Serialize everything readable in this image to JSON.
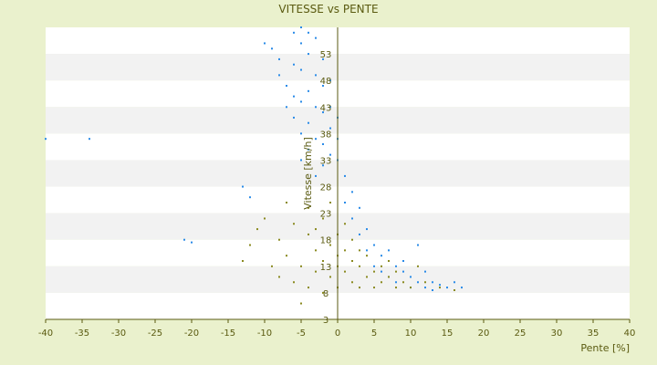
{
  "chart_data": {
    "type": "scatter",
    "title": "VITESSE vs PENTE",
    "xlabel": "Pente [%]",
    "ylabel": "Vitesse [km/h]",
    "xlim": [
      -40,
      40
    ],
    "ylim": [
      3,
      58
    ],
    "x_ticks": [
      -40,
      -35,
      -30,
      -25,
      -20,
      -15,
      -10,
      -5,
      0,
      5,
      10,
      15,
      20,
      25,
      30,
      35,
      40
    ],
    "x_tick_labels": [
      "-40",
      "-35",
      "-30",
      "-25",
      "-20",
      "-15",
      "-10",
      "-5",
      "0",
      "5",
      "10",
      "15",
      "20",
      "25",
      "30",
      "35",
      "40"
    ],
    "y_ticks": [
      58,
      53,
      48,
      43,
      38,
      33,
      28,
      23,
      18,
      13,
      8,
      3
    ],
    "y_tick_labels": [
      "",
      "53",
      "48",
      "43",
      "38",
      "33",
      "28",
      "23",
      "18",
      "13",
      "8",
      "3"
    ],
    "bottom_axis_label": "3",
    "grid": "horizontal bands",
    "legend": "none",
    "colors": {
      "background": "#eaf1cd",
      "plot_band_light": "#ffffff",
      "plot_band_dark": "#f2f2f2",
      "axis": "#5a5a10",
      "text": "#5a5a10",
      "series_1": "#2a8be8",
      "series_2": "#8a8a20"
    },
    "series": [
      {
        "color": "#2a8be8",
        "points": [
          [
            -40,
            37
          ],
          [
            -34,
            37
          ],
          [
            -21,
            18
          ],
          [
            -20,
            17.5
          ],
          [
            -13,
            28
          ],
          [
            -12,
            26
          ],
          [
            -10,
            55
          ],
          [
            -9,
            54
          ],
          [
            -8,
            52
          ],
          [
            -8,
            49
          ],
          [
            -7,
            47
          ],
          [
            -7,
            43
          ],
          [
            -6,
            57
          ],
          [
            -6,
            51
          ],
          [
            -6,
            45
          ],
          [
            -6,
            41
          ],
          [
            -5,
            58
          ],
          [
            -5,
            55
          ],
          [
            -5,
            50
          ],
          [
            -5,
            44
          ],
          [
            -5,
            38
          ],
          [
            -5,
            33
          ],
          [
            -4,
            57
          ],
          [
            -4,
            53
          ],
          [
            -4,
            46
          ],
          [
            -4,
            40
          ],
          [
            -4,
            35
          ],
          [
            -3,
            56
          ],
          [
            -3,
            49
          ],
          [
            -3,
            43
          ],
          [
            -3,
            37
          ],
          [
            -3,
            30
          ],
          [
            -2,
            52
          ],
          [
            -2,
            47
          ],
          [
            -2,
            42
          ],
          [
            -2,
            36
          ],
          [
            -2,
            32
          ],
          [
            -1,
            48
          ],
          [
            -1,
            43
          ],
          [
            -1,
            39
          ],
          [
            -1,
            34
          ],
          [
            0,
            41
          ],
          [
            0,
            37
          ],
          [
            0,
            33
          ],
          [
            1,
            30
          ],
          [
            1,
            25
          ],
          [
            2,
            27
          ],
          [
            2,
            22
          ],
          [
            3,
            24
          ],
          [
            3,
            19
          ],
          [
            4,
            20
          ],
          [
            4,
            16
          ],
          [
            5,
            17
          ],
          [
            5,
            13
          ],
          [
            6,
            15
          ],
          [
            6,
            12
          ],
          [
            7,
            16
          ],
          [
            7,
            11
          ],
          [
            8,
            13
          ],
          [
            8,
            10
          ],
          [
            9,
            14
          ],
          [
            9,
            12
          ],
          [
            10,
            11
          ],
          [
            10,
            9
          ],
          [
            11,
            17
          ],
          [
            11,
            10
          ],
          [
            12,
            12
          ],
          [
            12,
            9
          ],
          [
            13,
            10
          ],
          [
            13,
            8.5
          ],
          [
            14,
            9.5
          ],
          [
            15,
            9
          ],
          [
            16,
            10
          ],
          [
            17,
            9
          ]
        ]
      },
      {
        "color": "#8a8a20",
        "points": [
          [
            -13,
            14
          ],
          [
            -12,
            17
          ],
          [
            -11,
            20
          ],
          [
            -10,
            22
          ],
          [
            -9,
            13
          ],
          [
            -8,
            11
          ],
          [
            -8,
            18
          ],
          [
            -7,
            25
          ],
          [
            -7,
            15
          ],
          [
            -6,
            21
          ],
          [
            -6,
            10
          ],
          [
            -5,
            6
          ],
          [
            -5,
            13
          ],
          [
            -4,
            19
          ],
          [
            -4,
            24
          ],
          [
            -4,
            9
          ],
          [
            -3,
            16
          ],
          [
            -3,
            12
          ],
          [
            -3,
            20
          ],
          [
            -2,
            14
          ],
          [
            -2,
            22
          ],
          [
            -2,
            8
          ],
          [
            -1,
            17
          ],
          [
            -1,
            11
          ],
          [
            -1,
            25
          ],
          [
            0,
            15
          ],
          [
            0,
            19
          ],
          [
            0,
            9
          ],
          [
            0,
            13
          ],
          [
            1,
            16
          ],
          [
            1,
            21
          ],
          [
            1,
            12
          ],
          [
            2,
            14
          ],
          [
            2,
            18
          ],
          [
            2,
            10
          ],
          [
            3,
            13
          ],
          [
            3,
            9
          ],
          [
            3,
            16
          ],
          [
            4,
            11
          ],
          [
            4,
            15
          ],
          [
            5,
            12
          ],
          [
            5,
            9
          ],
          [
            6,
            13
          ],
          [
            6,
            10
          ],
          [
            7,
            11
          ],
          [
            7,
            14
          ],
          [
            8,
            12
          ],
          [
            8,
            9
          ],
          [
            9,
            10
          ],
          [
            10,
            9
          ],
          [
            11,
            13
          ],
          [
            12,
            10
          ],
          [
            14,
            9
          ],
          [
            16,
            8.5
          ]
        ]
      }
    ]
  }
}
